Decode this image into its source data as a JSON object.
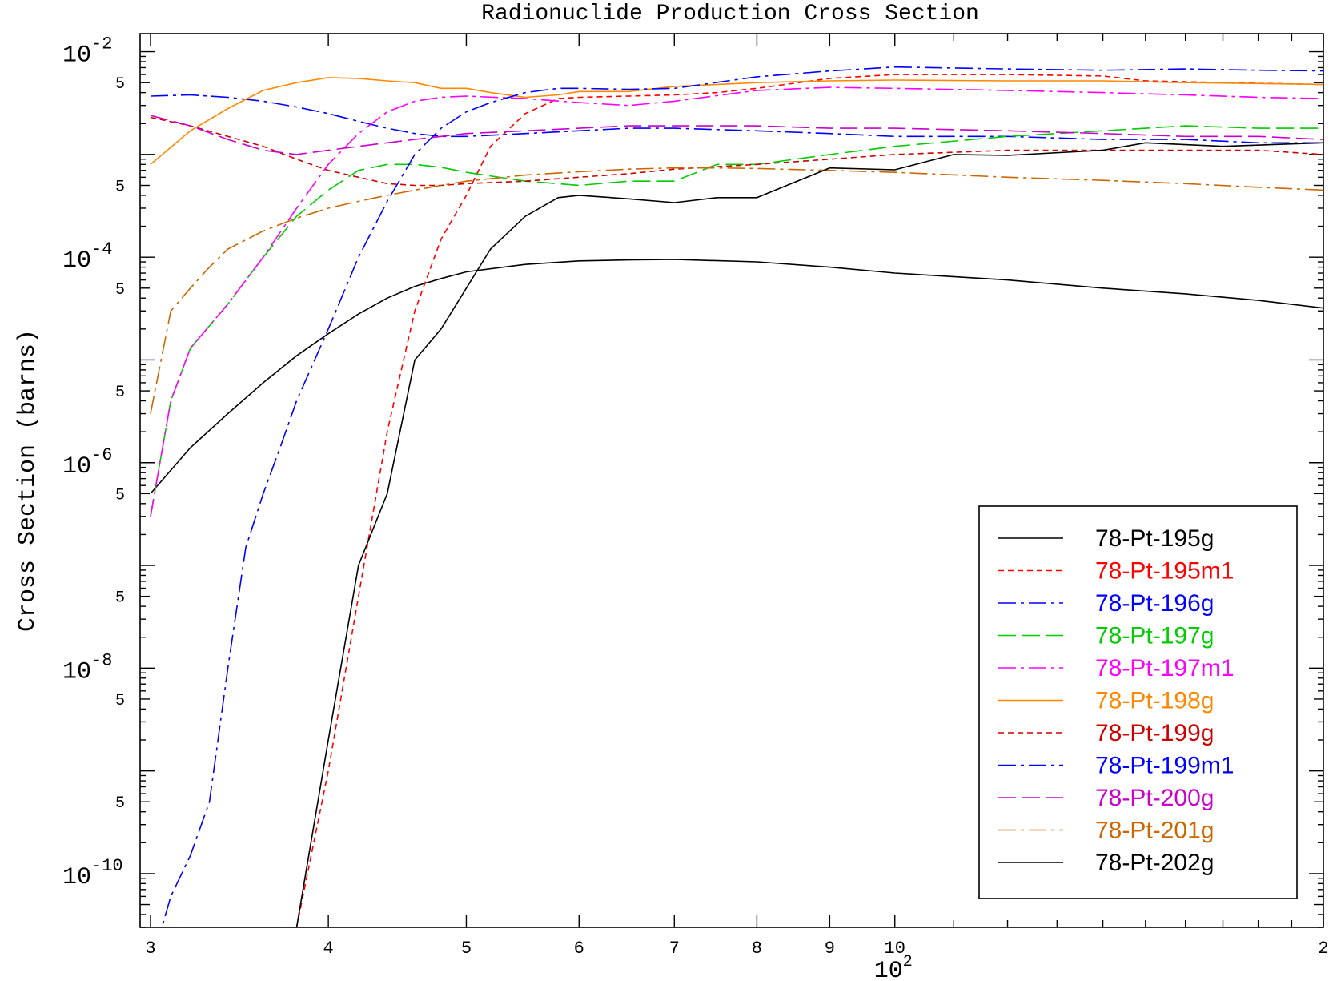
{
  "chart_data": {
    "type": "line",
    "title": "Radionuclide Production Cross Section",
    "xlabel": "",
    "ylabel": "Cross Section (barns)",
    "x_scale": "log",
    "y_scale": "log",
    "xlim": [
      29.5,
      200
    ],
    "ylim": [
      3e-11,
      0.015
    ],
    "grid": false,
    "legend_position": "bottom-right",
    "x_tick_labels": [
      "3",
      "4",
      "5",
      "6",
      "7",
      "8",
      "9",
      "10",
      "2"
    ],
    "x_tick_values": [
      30,
      40,
      50,
      60,
      70,
      80,
      90,
      100,
      200
    ],
    "x_exponent_label": {
      "base": "10",
      "exp": "2"
    },
    "y_decade_labels": [
      {
        "base": "10",
        "exp": "-2",
        "value": 0.01
      },
      {
        "base": "10",
        "exp": "-4",
        "value": 0.0001
      },
      {
        "base": "10",
        "exp": "-6",
        "value": 1e-06
      },
      {
        "base": "10",
        "exp": "-8",
        "value": 1e-08
      },
      {
        "base": "10",
        "exp": "-10",
        "value": 1e-10
      }
    ],
    "y_minor_label": "5",
    "y_minor_label_values": [
      0.005,
      0.0005,
      5e-05,
      5e-06,
      5e-07,
      5e-08,
      5e-09,
      5e-10
    ],
    "series": [
      {
        "name": "78-Pt-195g",
        "color": "#000000",
        "dash": "solid",
        "x": [
          30,
          32,
          34,
          36,
          38,
          40,
          42,
          44,
          46,
          48,
          50,
          55,
          60,
          65,
          70,
          80,
          90,
          100,
          120,
          140,
          160,
          180,
          200
        ],
        "y": [
          5e-07,
          1.4e-06,
          3e-06,
          6e-06,
          1.1e-05,
          1.8e-05,
          2.8e-05,
          4e-05,
          5.2e-05,
          6.2e-05,
          7.2e-05,
          8.5e-05,
          9.2e-05,
          9.4e-05,
          9.5e-05,
          9e-05,
          8e-05,
          7e-05,
          6e-05,
          5e-05,
          4.4e-05,
          3.8e-05,
          3.2e-05
        ]
      },
      {
        "name": "78-Pt-195m1",
        "color": "#ff0000",
        "dash": "short",
        "x": [
          38,
          40,
          42,
          44,
          46,
          48,
          50,
          52,
          55,
          58,
          60,
          65,
          70,
          75,
          80,
          90,
          100,
          110,
          120,
          140,
          150,
          170,
          200
        ],
        "y": [
          3e-11,
          1e-09,
          5e-08,
          2e-06,
          3e-05,
          0.00015,
          0.0004,
          0.0012,
          0.0025,
          0.0035,
          0.0036,
          0.0037,
          0.0038,
          0.004,
          0.0044,
          0.0055,
          0.006,
          0.006,
          0.006,
          0.0058,
          0.0052,
          0.005,
          0.0048
        ]
      },
      {
        "name": "78-Pt-196g",
        "color": "#0000ff",
        "dash": "dashdot",
        "x": [
          30,
          32,
          34,
          36,
          38,
          40,
          42,
          44,
          46,
          48,
          50,
          55,
          60,
          65,
          70,
          80,
          90,
          100,
          120,
          140,
          160,
          180,
          200
        ],
        "y": [
          0.0037,
          0.0038,
          0.0036,
          0.0033,
          0.0029,
          0.0025,
          0.0021,
          0.0018,
          0.0016,
          0.0015,
          0.0015,
          0.0016,
          0.0017,
          0.0018,
          0.0018,
          0.0017,
          0.0016,
          0.0015,
          0.0015,
          0.0014,
          0.0014,
          0.0013,
          0.0013
        ]
      },
      {
        "name": "78-Pt-197g",
        "color": "#00cc00",
        "dash": "longdash",
        "x": [
          30,
          31,
          32,
          34,
          36,
          38,
          40,
          42,
          44,
          46,
          48,
          50,
          55,
          60,
          65,
          70,
          75,
          80,
          90,
          100,
          120,
          140,
          160,
          180,
          200
        ],
        "y": [
          3e-07,
          4e-06,
          1.3e-05,
          3.5e-05,
          0.0001,
          0.00025,
          0.00045,
          0.0007,
          0.0008,
          0.0008,
          0.00075,
          0.00067,
          0.00055,
          0.0005,
          0.00055,
          0.00055,
          0.0008,
          0.0008,
          0.001,
          0.0012,
          0.0015,
          0.0017,
          0.0019,
          0.0018,
          0.0018
        ]
      },
      {
        "name": "78-Pt-197m1",
        "color": "#ff00ff",
        "dash": "dashdot",
        "x": [
          30,
          31,
          32,
          34,
          36,
          38,
          40,
          42,
          44,
          46,
          48,
          50,
          55,
          60,
          65,
          70,
          80,
          90,
          100,
          120,
          140,
          160,
          180,
          200
        ],
        "y": [
          3e-07,
          4e-06,
          1.3e-05,
          3.5e-05,
          0.0001,
          0.0003,
          0.0008,
          0.0016,
          0.0026,
          0.0033,
          0.0036,
          0.0037,
          0.0035,
          0.0032,
          0.003,
          0.0033,
          0.0042,
          0.0045,
          0.0044,
          0.0042,
          0.004,
          0.0038,
          0.0036,
          0.0035
        ]
      },
      {
        "name": "78-Pt-198g",
        "color": "#ff8800",
        "dash": "solid",
        "x": [
          30,
          32,
          34,
          36,
          38,
          40,
          42,
          44,
          46,
          48,
          50,
          52,
          55,
          58,
          60,
          65,
          70,
          80,
          90,
          100,
          120,
          140,
          160,
          180,
          200
        ],
        "y": [
          0.0008,
          0.0017,
          0.0028,
          0.0042,
          0.005,
          0.0056,
          0.0055,
          0.0052,
          0.005,
          0.0044,
          0.0044,
          0.004,
          0.0036,
          0.0038,
          0.0041,
          0.0041,
          0.0046,
          0.005,
          0.0052,
          0.0053,
          0.0052,
          0.0052,
          0.005,
          0.0049,
          0.0048
        ]
      },
      {
        "name": "78-Pt-199g",
        "color": "#cc0000",
        "dash": "short",
        "x": [
          30,
          32,
          34,
          36,
          38,
          40,
          42,
          44,
          46,
          48,
          50,
          55,
          60,
          65,
          70,
          80,
          90,
          100,
          120,
          140,
          160,
          180,
          200
        ],
        "y": [
          0.0023,
          0.0019,
          0.0015,
          0.0012,
          0.0009,
          0.0007,
          0.0006,
          0.00052,
          0.0005,
          0.0005,
          0.00052,
          0.00055,
          0.0006,
          0.00065,
          0.00072,
          0.0008,
          0.0009,
          0.001,
          0.0011,
          0.0011,
          0.0011,
          0.0011,
          0.001
        ]
      },
      {
        "name": "78-Pt-199m1",
        "color": "#0000ff",
        "dash": "dashdot",
        "x": [
          30.3,
          31,
          32,
          33,
          34,
          35,
          36,
          37,
          38,
          40,
          42,
          44,
          46,
          48,
          50,
          52,
          55,
          58,
          60,
          65,
          70,
          80,
          90,
          100,
          120,
          140,
          160,
          180,
          200
        ],
        "y": [
          2e-11,
          6e-11,
          1.5e-10,
          5e-10,
          1e-08,
          1.5e-07,
          5e-07,
          1.4e-06,
          4e-06,
          2e-05,
          0.0001,
          0.00035,
          0.001,
          0.0018,
          0.0026,
          0.0032,
          0.004,
          0.0044,
          0.0044,
          0.0043,
          0.0044,
          0.0057,
          0.0065,
          0.0071,
          0.0068,
          0.0066,
          0.0068,
          0.0066,
          0.0065
        ]
      },
      {
        "name": "78-Pt-200g",
        "color": "#cc00cc",
        "dash": "longdash",
        "x": [
          30,
          32,
          34,
          36,
          38,
          40,
          42,
          44,
          46,
          48,
          50,
          55,
          60,
          65,
          70,
          80,
          90,
          100,
          120,
          140,
          160,
          180,
          200
        ],
        "y": [
          0.0024,
          0.0019,
          0.0014,
          0.0011,
          0.001,
          0.0011,
          0.0012,
          0.0013,
          0.0014,
          0.0015,
          0.0016,
          0.0017,
          0.0018,
          0.0019,
          0.0019,
          0.0019,
          0.0018,
          0.0018,
          0.0017,
          0.0016,
          0.0015,
          0.0015,
          0.0014
        ]
      },
      {
        "name": "78-Pt-201g",
        "color": "#cc6600",
        "dash": "dashdot",
        "x": [
          30,
          31,
          32,
          33,
          34,
          36,
          38,
          40,
          42,
          44,
          46,
          48,
          50,
          55,
          60,
          65,
          70,
          75,
          80,
          90,
          100,
          120,
          140,
          160,
          180,
          200
        ],
        "y": [
          3e-06,
          3e-05,
          5e-05,
          8e-05,
          0.00012,
          0.00018,
          0.00024,
          0.0003,
          0.00035,
          0.0004,
          0.00045,
          0.0005,
          0.00055,
          0.00063,
          0.00068,
          0.00072,
          0.00074,
          0.00074,
          0.00073,
          0.0007,
          0.00067,
          0.0006,
          0.00056,
          0.00052,
          0.00048,
          0.00045
        ]
      },
      {
        "name": "78-Pt-202g",
        "color": "#000000",
        "dash": "solid",
        "x": [
          38,
          40,
          42,
          44,
          46,
          48,
          50,
          52,
          55,
          58,
          60,
          65,
          70,
          75,
          80,
          90,
          100,
          110,
          120,
          140,
          150,
          170,
          200
        ],
        "y": [
          3e-11,
          2e-09,
          1e-07,
          5e-07,
          1e-05,
          2e-05,
          5e-05,
          0.00012,
          0.00025,
          0.00038,
          0.0004,
          0.00037,
          0.00034,
          0.00038,
          0.00038,
          0.00074,
          0.00071,
          0.001,
          0.00098,
          0.0011,
          0.0013,
          0.0012,
          0.0013
        ]
      }
    ]
  }
}
